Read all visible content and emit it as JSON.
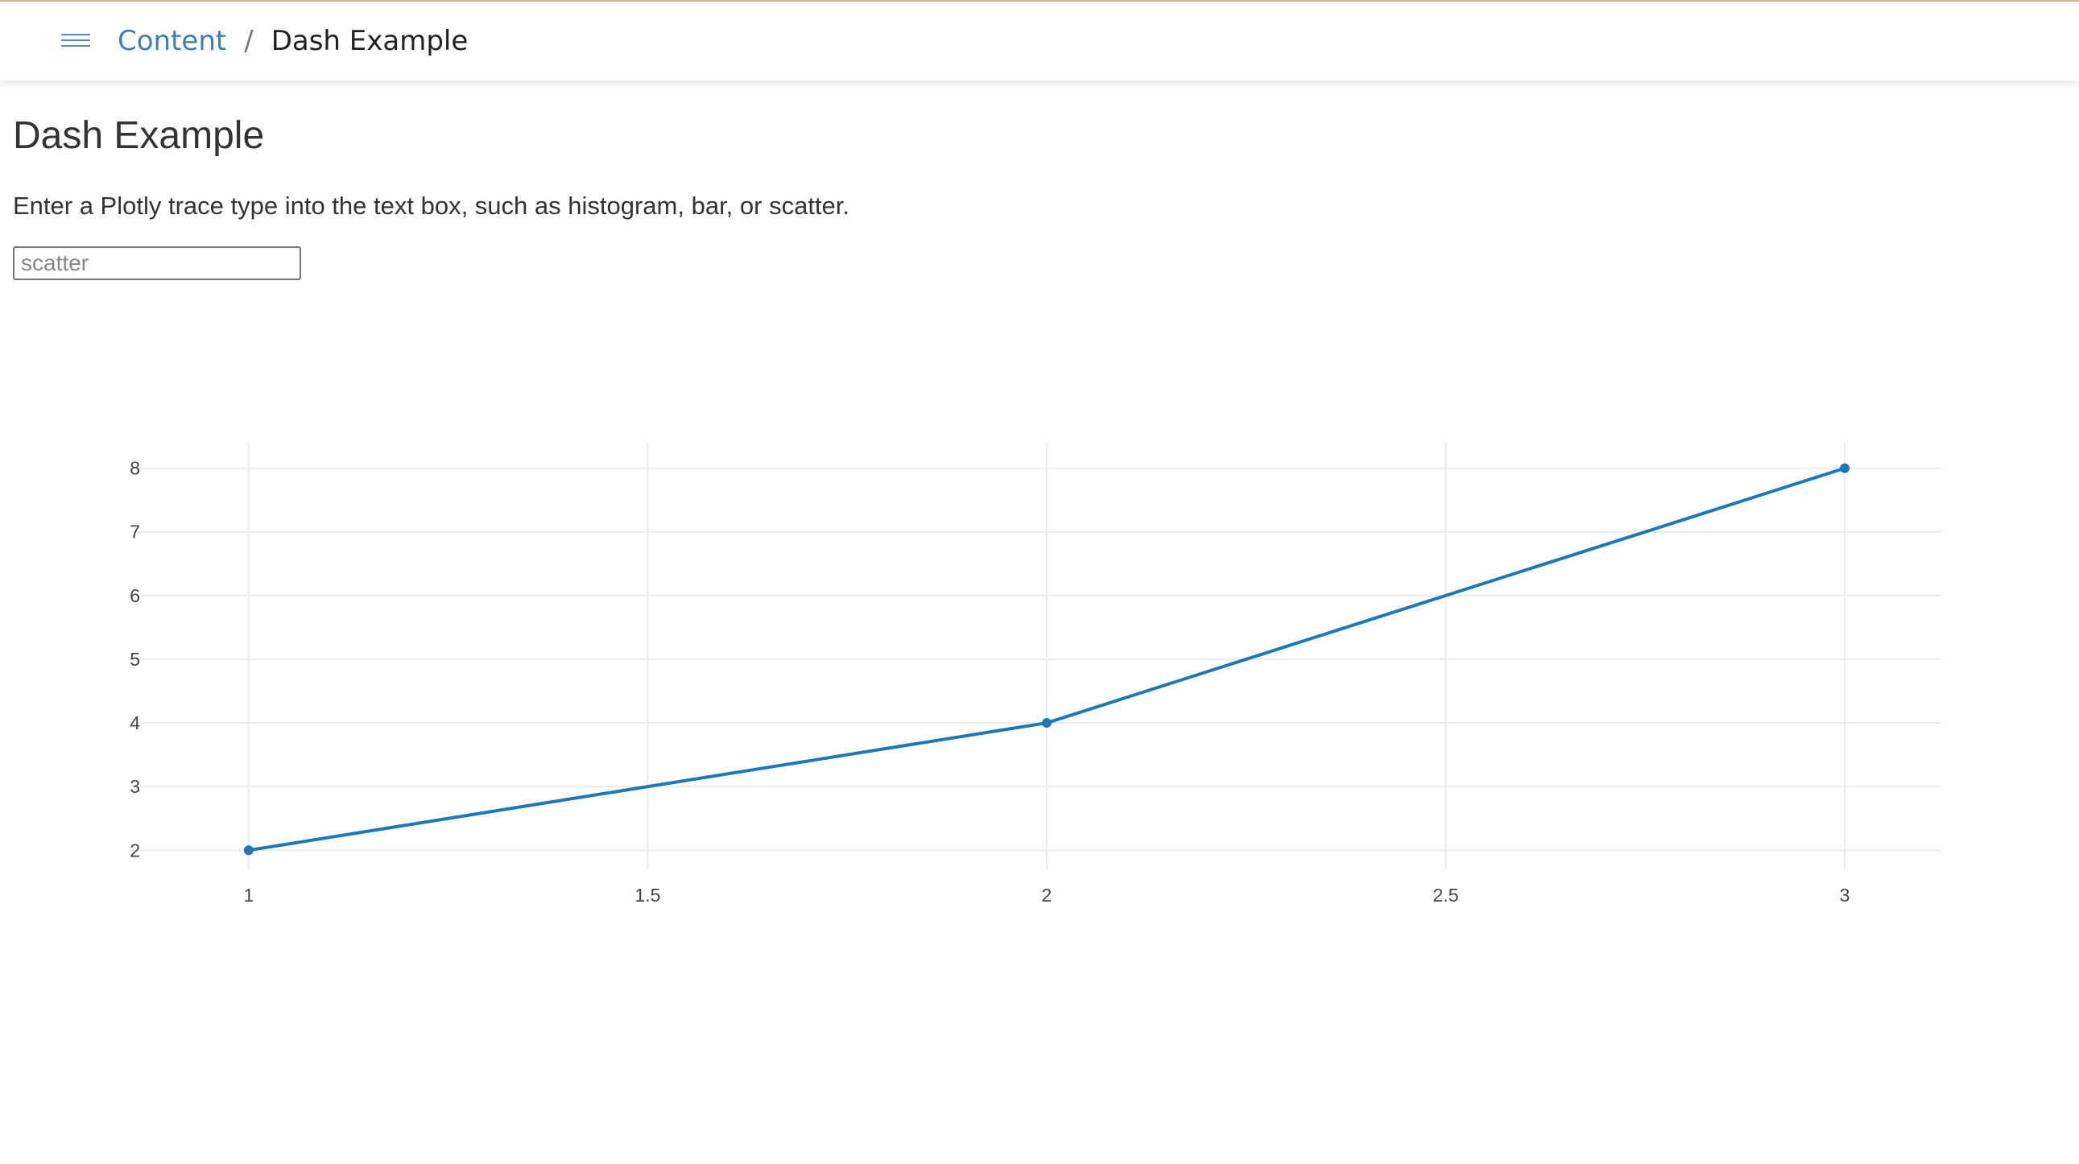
{
  "header": {
    "menu_icon": "hamburger-menu-icon",
    "breadcrumb": {
      "parent_label": "Content",
      "separator": "/",
      "current_label": "Dash Example"
    },
    "accent_color": "#c8b78f",
    "link_color": "#3f7fb5"
  },
  "main": {
    "title": "Dash Example",
    "instructions": "Enter a Plotly trace type into the text box, such as histogram, bar, or scatter.",
    "trace_input": {
      "value": "",
      "placeholder": "scatter"
    }
  },
  "chart_data": {
    "type": "line",
    "x": [
      1,
      2,
      3
    ],
    "series": [
      {
        "values": [
          2,
          4,
          8
        ],
        "color": "#1f77b4",
        "mode": "lines+markers"
      }
    ],
    "xlim": [
      0.87,
      3.12
    ],
    "ylim": [
      1.7,
      8.4
    ],
    "x_ticks": [
      "1",
      "1.5",
      "2",
      "2.5",
      "3"
    ],
    "y_ticks": [
      "2",
      "3",
      "4",
      "5",
      "6",
      "7",
      "8"
    ],
    "grid": true,
    "title": "",
    "xlabel": "",
    "ylabel": ""
  }
}
